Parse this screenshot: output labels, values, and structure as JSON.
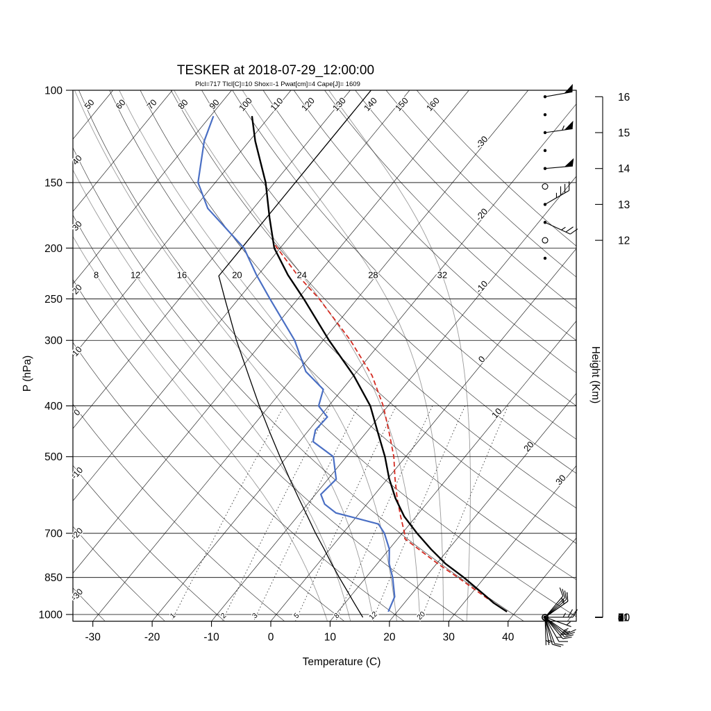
{
  "title": "TESKER at 2018-07-29_12:00:00",
  "subtitle": "Plcl=717 Tlcl[C]=10 Shox=-1 Pwat[cm]=4 Cape[J]= 1609",
  "chart_data": {
    "type": "skewt_log_p_sounding",
    "station": "TESKER",
    "datetime": "2018-07-29_12:00:00",
    "indices": {
      "Plcl": 717,
      "Tlcl_C": 10,
      "Shox": -1,
      "Pwat_cm": 4,
      "Cape_J": 1609
    },
    "xlabel": "Temperature (C)",
    "ylabel_left": "P (hPa)",
    "ylabel_right": "Height (Km)",
    "pressure_ticks": [
      100,
      150,
      200,
      250,
      300,
      400,
      500,
      700,
      850,
      1000
    ],
    "temperature_ticks": [
      -30,
      -20,
      -10,
      0,
      10,
      20,
      30,
      40
    ],
    "height_ticks_km": [
      0,
      1,
      2,
      3,
      4,
      5,
      6,
      7,
      8,
      9,
      10,
      11,
      12,
      13,
      14,
      15,
      16
    ],
    "isotherm_labels": [
      -30,
      -20,
      -10,
      0,
      10,
      20,
      30
    ],
    "dry_adiabat_left_labels": [
      40,
      30,
      20,
      10,
      0,
      -10,
      -20,
      -30
    ],
    "dry_adiabat_top_labels": [
      50,
      60,
      70,
      80,
      90,
      100,
      110,
      120,
      130,
      140,
      150,
      160
    ],
    "moist_adiabat_labels": [
      8,
      12,
      16,
      20,
      24,
      28,
      32
    ],
    "mixing_ratio_labels": [
      1,
      2,
      3,
      5,
      8,
      12,
      20
    ],
    "temperature_profile_p_t": [
      [
        988,
        38.5
      ],
      [
        950,
        35.0
      ],
      [
        925,
        33.0
      ],
      [
        850,
        26.5
      ],
      [
        800,
        21.5
      ],
      [
        750,
        17.0
      ],
      [
        700,
        12.5
      ],
      [
        650,
        8.0
      ],
      [
        600,
        4.0
      ],
      [
        550,
        0.2
      ],
      [
        500,
        -3.5
      ],
      [
        450,
        -8.0
      ],
      [
        400,
        -13.0
      ],
      [
        350,
        -20.0
      ],
      [
        300,
        -29.0
      ],
      [
        250,
        -39.0
      ],
      [
        225,
        -45.0
      ],
      [
        200,
        -51.0
      ],
      [
        175,
        -56.0
      ],
      [
        150,
        -61.5
      ],
      [
        125,
        -69.0
      ],
      [
        112,
        -73.0
      ]
    ],
    "dewpoint_profile_p_t": [
      [
        988,
        18.5
      ],
      [
        925,
        17.5
      ],
      [
        850,
        14.5
      ],
      [
        800,
        12.0
      ],
      [
        750,
        10.0
      ],
      [
        700,
        7.0
      ],
      [
        672,
        4.7
      ],
      [
        640,
        -4.0
      ],
      [
        616,
        -7.1
      ],
      [
        590,
        -9.1
      ],
      [
        552,
        -8.6
      ],
      [
        500,
        -12.2
      ],
      [
        468,
        -17.7
      ],
      [
        445,
        -18.9
      ],
      [
        420,
        -18.7
      ],
      [
        400,
        -21.7
      ],
      [
        372,
        -23.2
      ],
      [
        344,
        -28.6
      ],
      [
        300,
        -34.8
      ],
      [
        250,
        -44.7
      ],
      [
        225,
        -50.3
      ],
      [
        200,
        -56.1
      ],
      [
        168,
        -67.7
      ],
      [
        150,
        -72.9
      ],
      [
        125,
        -77.6
      ],
      [
        112,
        -79.5
      ]
    ],
    "parcel_profile_p_t": [
      [
        988,
        38.5
      ],
      [
        925,
        32.7
      ],
      [
        850,
        25.5
      ],
      [
        800,
        20.2
      ],
      [
        750,
        14.9
      ],
      [
        717,
        11.2
      ],
      [
        700,
        10.4
      ],
      [
        650,
        7.4
      ],
      [
        600,
        4.3
      ],
      [
        550,
        1.2
      ],
      [
        500,
        -2.0
      ],
      [
        450,
        -6.1
      ],
      [
        400,
        -10.8
      ],
      [
        350,
        -16.9
      ],
      [
        300,
        -25.4
      ],
      [
        250,
        -36.4
      ],
      [
        225,
        -43.4
      ],
      [
        200,
        -50.5
      ],
      [
        195,
        -52.0
      ]
    ],
    "standard_atmosphere_p_t": [
      [
        1013,
        15.0
      ],
      [
        950,
        11.5
      ],
      [
        900,
        8.6
      ],
      [
        850,
        5.5
      ],
      [
        800,
        2.3
      ],
      [
        750,
        -1.0
      ],
      [
        700,
        -4.6
      ],
      [
        650,
        -8.3
      ],
      [
        600,
        -12.3
      ],
      [
        550,
        -16.6
      ],
      [
        500,
        -21.2
      ],
      [
        450,
        -26.2
      ],
      [
        400,
        -31.7
      ],
      [
        350,
        -37.7
      ],
      [
        300,
        -44.6
      ],
      [
        250,
        -52.3
      ],
      [
        226,
        -56.5
      ],
      [
        200,
        -56.5
      ],
      [
        150,
        -56.5
      ],
      [
        100,
        -56.5
      ]
    ],
    "winds": [
      {
        "z_km": 16.0,
        "angle_deg": 10,
        "speed_kt": 50,
        "marker": "dot"
      },
      {
        "z_km": 15.5,
        "marker": "dot"
      },
      {
        "z_km": 15.0,
        "angle_deg": 8,
        "speed_kt": 55,
        "marker": "dot"
      },
      {
        "z_km": 14.5,
        "marker": "dot"
      },
      {
        "z_km": 14.0,
        "angle_deg": 5,
        "speed_kt": 50,
        "marker": "dot"
      },
      {
        "z_km": 13.5,
        "marker": "calm"
      },
      {
        "z_km": 13.0,
        "angle_deg": 30,
        "speed_kt": 35,
        "marker": "dot"
      },
      {
        "z_km": 12.5,
        "angle_deg": -25,
        "speed_kt": 25,
        "marker": "dot"
      },
      {
        "z_km": 12.0,
        "marker": "calm"
      },
      {
        "z_km": 11.5,
        "marker": "dot"
      },
      {
        "z_km": 11.0,
        "angle_deg": -20,
        "speed_kt": 5,
        "marker": "dot"
      },
      {
        "z_km": 10.5,
        "marker": "dot"
      },
      {
        "z_km": 10.0,
        "marker": "calm"
      },
      {
        "z_km": 9.5,
        "marker": "dot"
      },
      {
        "z_km": 9.0,
        "angle_deg": 0,
        "speed_kt": 25,
        "marker": "circle-dot"
      },
      {
        "z_km": 8.5,
        "marker": "dot"
      },
      {
        "z_km": 8.0,
        "angle_deg": 35,
        "speed_kt": 10,
        "marker": "dot"
      },
      {
        "z_km": 7.5,
        "marker": "dot"
      },
      {
        "z_km": 7.0,
        "angle_deg": 35,
        "speed_kt": 15,
        "marker": "dot"
      },
      {
        "z_km": 6.5,
        "marker": "dot"
      },
      {
        "z_km": 6.0,
        "angle_deg": 40,
        "speed_kt": 15,
        "marker": "dot"
      },
      {
        "z_km": 5.5,
        "marker": "calm"
      },
      {
        "z_km": 5.0,
        "angle_deg": 45,
        "speed_kt": 10,
        "marker": "dot"
      },
      {
        "z_km": 4.5,
        "marker": "dot"
      },
      {
        "z_km": 4.0,
        "angle_deg": 50,
        "speed_kt": 10,
        "marker": "dot"
      },
      {
        "z_km": 3.5,
        "marker": "dot"
      },
      {
        "z_km": 3.0,
        "angle_deg": -35,
        "speed_kt": 15,
        "marker": "dot"
      },
      {
        "z_km": 2.5,
        "angle_deg": -40,
        "speed_kt": 15,
        "marker": "dot"
      },
      {
        "z_km": 2.0,
        "angle_deg": -45,
        "speed_kt": 20,
        "marker": "dot"
      },
      {
        "z_km": 1.5,
        "angle_deg": -50,
        "speed_kt": 20,
        "marker": "circle-dot"
      },
      {
        "z_km": 1.0,
        "angle_deg": -60,
        "speed_kt": 15,
        "marker": "dot"
      },
      {
        "z_km": 0.75,
        "angle_deg": -70,
        "speed_kt": 10,
        "marker": "dot"
      },
      {
        "z_km": 0.5,
        "angle_deg": -75,
        "speed_kt": 10,
        "marker": "dot"
      },
      {
        "z_km": 0.25,
        "angle_deg": -82,
        "speed_kt": 5,
        "marker": "dot"
      },
      {
        "z_km": 0.0,
        "angle_deg": -88,
        "speed_kt": 5,
        "marker": "circle-dot"
      }
    ],
    "colors": {
      "temperature": "#000000",
      "dewpoint": "#4a6fc4",
      "parcel": "#d42a20",
      "standard_atmosphere": "#000000",
      "subtitle": "#cc5511",
      "moist_adiabat": "#9a9a9a",
      "mixing_ratio": "#3c3c3c",
      "grid": "#000000"
    }
  }
}
